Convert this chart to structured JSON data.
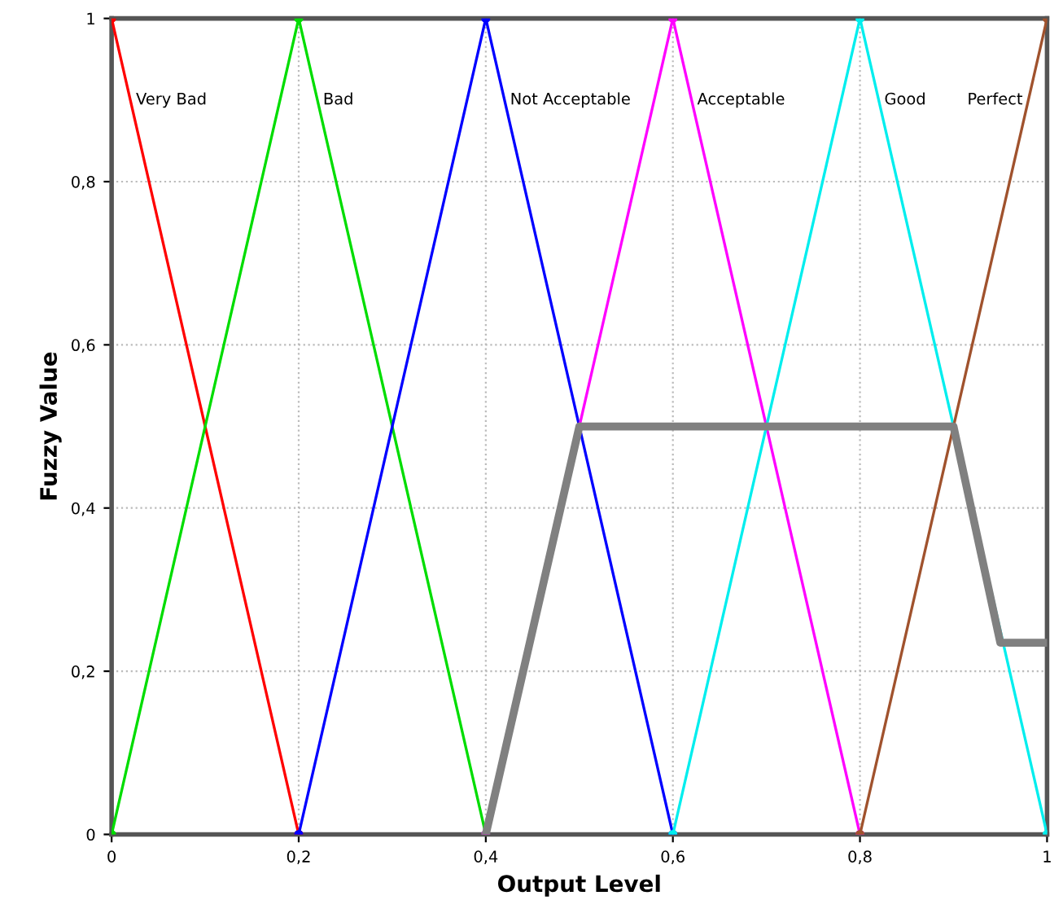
{
  "chart_data": {
    "type": "line",
    "xlabel": "Output Level",
    "ylabel": "Fuzzy Value",
    "xlim": [
      0,
      1
    ],
    "ylim": [
      0,
      1
    ],
    "xticks": [
      0,
      {
        "value": 0.2,
        "label": "0,2"
      },
      {
        "value": 0.4,
        "label": "0,4"
      },
      {
        "value": 0.6,
        "label": "0,6"
      },
      {
        "value": 0.8,
        "label": "0,8"
      },
      1
    ],
    "yticks": [
      0,
      {
        "value": 0.2,
        "label": "0,2"
      },
      {
        "value": 0.4,
        "label": "0,4"
      },
      {
        "value": 0.6,
        "label": "0,6"
      },
      {
        "value": 0.8,
        "label": "0,8"
      },
      1
    ],
    "grid": true,
    "marker": "circle",
    "legend": false,
    "series": [
      {
        "name": "Very Bad",
        "color": "#ff0000",
        "x": [
          0,
          0.2
        ],
        "values": [
          1,
          0
        ]
      },
      {
        "name": "Bad",
        "color": "#00dd00",
        "x": [
          0,
          0.2,
          0.4
        ],
        "values": [
          0,
          1,
          0
        ]
      },
      {
        "name": "Not Acceptable",
        "color": "#0000ff",
        "x": [
          0.2,
          0.4,
          0.6
        ],
        "values": [
          0,
          1,
          0
        ]
      },
      {
        "name": "Acceptable",
        "color": "#ff00ff",
        "x": [
          0.4,
          0.6,
          0.8
        ],
        "values": [
          0,
          1,
          0
        ]
      },
      {
        "name": "Good",
        "color": "#00eeee",
        "x": [
          0.6,
          0.8,
          1
        ],
        "values": [
          0,
          1,
          0
        ]
      },
      {
        "name": "Perfect",
        "color": "#a0522d",
        "x": [
          0.8,
          1
        ],
        "values": [
          0,
          1
        ]
      },
      {
        "color": "#808080",
        "marker": "none",
        "x": [
          0.4,
          0.5,
          0.9,
          0.95,
          1
        ],
        "values": [
          0,
          0.5,
          0.5,
          0.235,
          0.235
        ]
      }
    ]
  }
}
